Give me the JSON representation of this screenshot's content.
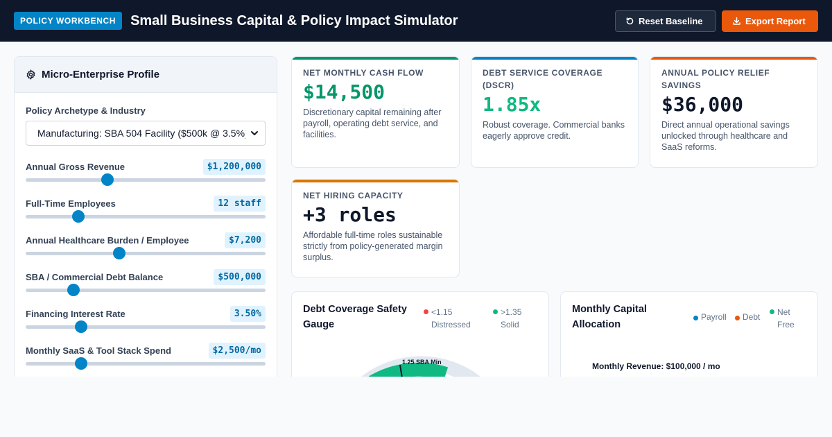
{
  "header": {
    "badge": "POLICY WORKBENCH",
    "title": "Small Business Capital & Policy Impact Simulator",
    "reset_label": "Reset Baseline",
    "export_label": "Export Report"
  },
  "profile": {
    "title": "Micro-Enterprise Profile",
    "archetype_label": "Policy Archetype & Industry",
    "archetype_value": "Manufacturing: SBA 504 Facility ($500k @ 3.5%)",
    "sliders": [
      {
        "label": "Annual Gross Revenue",
        "value": "$1,200,000",
        "position": 0.34
      },
      {
        "label": "Full-Time Employees",
        "value": "12 staff",
        "position": 0.22
      },
      {
        "label": "Annual Healthcare Burden / Employee",
        "value": "$7,200",
        "position": 0.39
      },
      {
        "label": "SBA / Commercial Debt Balance",
        "value": "$500,000",
        "position": 0.2
      },
      {
        "label": "Financing Interest Rate",
        "value": "3.50%",
        "position": 0.23
      },
      {
        "label": "Monthly SaaS & Tool Stack Spend",
        "value": "$2,500/mo",
        "position": 0.23
      }
    ]
  },
  "metrics": [
    {
      "label": "NET MONTHLY CASH FLOW",
      "value": "$14,500",
      "desc": "Discretionary capital remaining after payroll, operating debt service, and facilities.",
      "accent": "#059669",
      "value_color": "#059669"
    },
    {
      "label": "DEBT SERVICE COVERAGE (DSCR)",
      "value": "1.85x",
      "desc": "Robust coverage. Commercial banks eagerly approve credit.",
      "accent": "#0284c7",
      "value_color": "#10b981"
    },
    {
      "label": "ANNUAL POLICY RELIEF SAVINGS",
      "value": "$36,000",
      "desc": "Direct annual operational savings unlocked through healthcare and SaaS reforms.",
      "accent": "#ea580c",
      "value_color": "#0f172a"
    },
    {
      "label": "NET HIRING CAPACITY",
      "value": "+3 roles",
      "desc": "Affordable full-time roles sustainable strictly from policy-generated margin surplus.",
      "accent": "#d97706",
      "value_color": "#0f172a"
    }
  ],
  "gauge": {
    "title": "Debt Coverage Safety Gauge",
    "legend": [
      {
        "label": "<1.15 Distressed",
        "color": "#ef4444"
      },
      {
        "label": ">1.35 Solid",
        "color": "#10b981"
      }
    ],
    "marker_label": "1.25 SBA Min"
  },
  "allocation": {
    "title": "Monthly Capital Allocation",
    "legend": [
      {
        "label": "Payroll",
        "color": "#0284c7"
      },
      {
        "label": "Debt",
        "color": "#ea580c"
      },
      {
        "label": "Net Free",
        "color": "#10b981"
      }
    ],
    "revenue_label": "Monthly Revenue: $100,000 / mo"
  }
}
